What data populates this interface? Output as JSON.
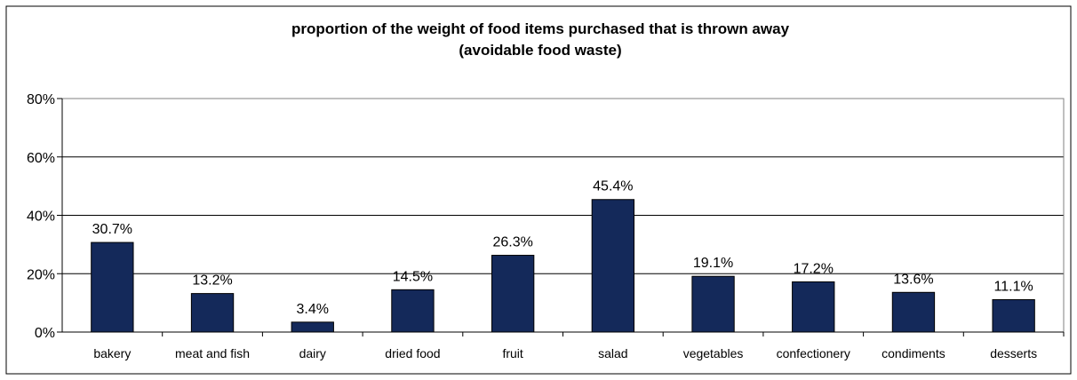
{
  "chart_data": {
    "type": "bar",
    "title_lines": [
      "proportion of the weight of food items purchased that is thrown away",
      "(avoidable food waste)"
    ],
    "categories": [
      "bakery",
      "meat and fish",
      "dairy",
      "dried food",
      "fruit",
      "salad",
      "vegetables",
      "confectionery",
      "condiments",
      "desserts"
    ],
    "values": [
      30.7,
      13.2,
      3.4,
      14.5,
      26.3,
      45.4,
      19.1,
      17.2,
      13.6,
      11.1
    ],
    "data_labels": [
      "30.7%",
      "13.2%",
      "3.4%",
      "14.5%",
      "26.3%",
      "45.4%",
      "19.1%",
      "17.2%",
      "13.6%",
      "11.1%"
    ],
    "y_ticks": [
      0,
      20,
      40,
      60,
      80
    ],
    "y_tick_labels": [
      "0%",
      "20%",
      "40%",
      "60%",
      "80%"
    ],
    "ylim": [
      0,
      80
    ],
    "grid": true,
    "legend": "none",
    "bar_color": "#14295a"
  }
}
